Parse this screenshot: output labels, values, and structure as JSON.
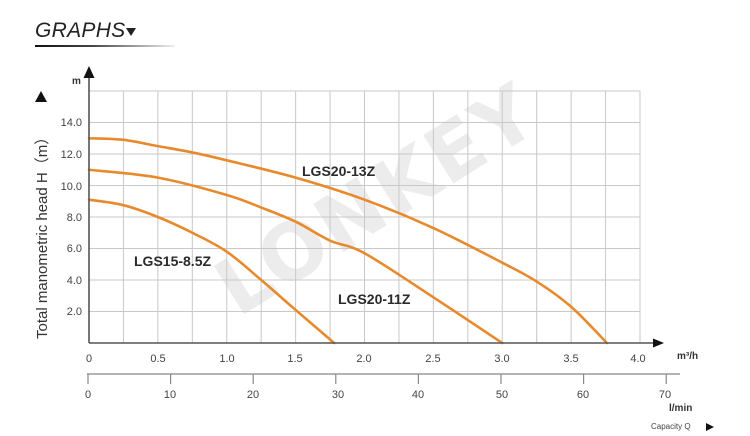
{
  "header": {
    "title": "GRAPHS",
    "arrow_icon": "caret-down-icon"
  },
  "watermark": "LONKEY",
  "axes": {
    "y_unit": "m",
    "y_label": "Total manometric head H（m）",
    "y_ticks": [
      "14.0",
      "12.0",
      "10.0",
      "8.0",
      "6.0",
      "4.0",
      "2.0"
    ],
    "x_unit": "m³/h",
    "x_ticks": [
      "0",
      "0.5",
      "1.0",
      "1.5",
      "2.0",
      "2.5",
      "3.0",
      "3.5",
      "4.0"
    ],
    "x2_unit": "l/min",
    "x2_ticks": [
      "0",
      "10",
      "20",
      "30",
      "40",
      "50",
      "60",
      "70"
    ],
    "capacity_label": "Capacity Q"
  },
  "curve_labels": {
    "c13": "LGS20-13Z",
    "c11": "LGS20-11Z",
    "c85": "LGS15-8.5Z"
  },
  "colors": {
    "curve": "#E8892C",
    "grid": "#C8C8C8",
    "axis": "#555555"
  },
  "chart_data": {
    "type": "line",
    "title": "GRAPHS",
    "xlabel": "Capacity Q (m³/h)",
    "x2label": "l/min",
    "ylabel": "Total manometric head H (m)",
    "xlim": [
      0,
      4.0
    ],
    "x2lim": [
      0,
      70
    ],
    "ylim": [
      0,
      16
    ],
    "x_ticks": [
      0,
      0.5,
      1.0,
      1.5,
      2.0,
      2.5,
      3.0,
      3.5,
      4.0
    ],
    "x2_ticks": [
      0,
      10,
      20,
      30,
      40,
      50,
      60,
      70
    ],
    "y_ticks": [
      2.0,
      4.0,
      6.0,
      8.0,
      10.0,
      12.0,
      14.0
    ],
    "grid": true,
    "series": [
      {
        "name": "LGS20-13Z",
        "x": [
          0,
          0.25,
          0.5,
          0.75,
          1.0,
          1.5,
          2.0,
          2.5,
          3.0,
          3.25,
          3.5,
          3.76
        ],
        "y": [
          13.0,
          12.9,
          12.5,
          12.1,
          11.6,
          10.5,
          9.1,
          7.3,
          5.1,
          3.9,
          2.3,
          0
        ]
      },
      {
        "name": "LGS20-11Z",
        "x": [
          0,
          0.5,
          1.0,
          1.25,
          1.5,
          1.75,
          2.0,
          2.5,
          3.0
        ],
        "y": [
          11.0,
          10.5,
          9.4,
          8.6,
          7.7,
          6.5,
          5.7,
          2.9,
          0
        ]
      },
      {
        "name": "LGS15-8.5Z",
        "x": [
          0,
          0.25,
          0.5,
          0.75,
          1.0,
          1.25,
          1.5,
          1.78
        ],
        "y": [
          9.1,
          8.75,
          8.0,
          7.0,
          5.8,
          4.0,
          2.1,
          0
        ]
      }
    ]
  }
}
